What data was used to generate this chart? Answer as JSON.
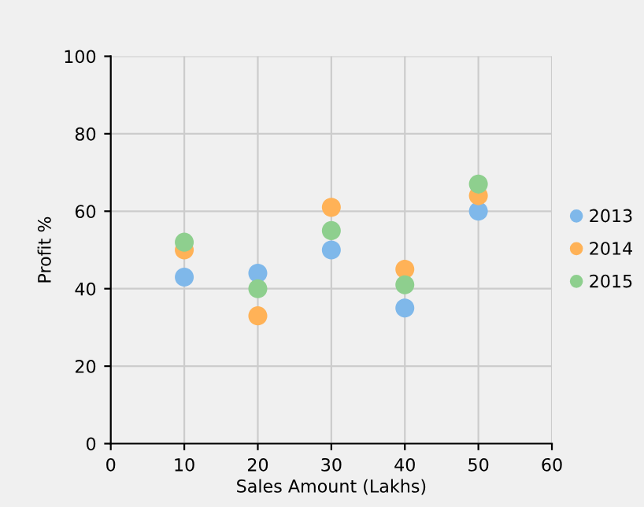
{
  "chart_data": {
    "type": "scatter",
    "xlabel": "Sales Amount (Lakhs)",
    "ylabel": "Profit %",
    "x": [
      10,
      20,
      30,
      40,
      50
    ],
    "series": [
      {
        "name": "2013",
        "color": "#7fb8ea",
        "values": [
          43,
          44,
          50,
          35,
          60
        ]
      },
      {
        "name": "2014",
        "color": "#ffb257",
        "values": [
          50,
          33,
          61,
          45,
          64
        ]
      },
      {
        "name": "2015",
        "color": "#8ecf8e",
        "values": [
          52,
          40,
          55,
          41,
          67
        ]
      }
    ],
    "xlim": [
      0,
      60
    ],
    "xticks": [
      0,
      10,
      20,
      30,
      40,
      50,
      60
    ],
    "ylim": [
      0,
      100
    ],
    "yticks": [
      0,
      20,
      40,
      60,
      80,
      100
    ],
    "grid": true,
    "legend": "right",
    "marker": "circle"
  }
}
